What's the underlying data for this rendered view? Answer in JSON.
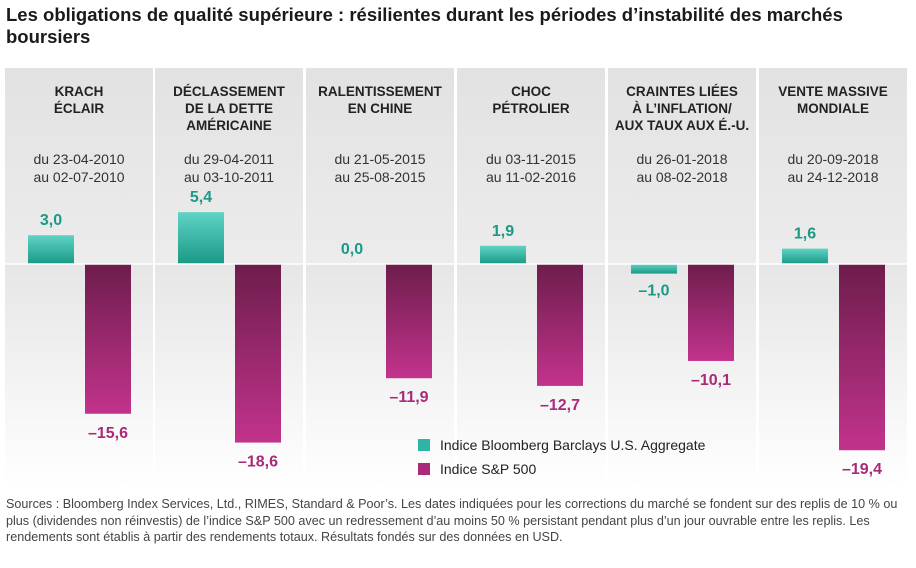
{
  "title": "Les obligations de qualité supérieure : résilientes durant les périodes d’instabilité des marchés boursiers",
  "colors": {
    "bonds": "#2fb5a5",
    "equities": "#a82a78",
    "panel_bg": "#e5e5e5"
  },
  "legend": {
    "bonds": "Indice Bloomberg Barclays U.S. Aggregate",
    "equities": "Indice S&P 500"
  },
  "footnote": "Sources : Bloomberg Index Services, Ltd., RIMES, Standard & Poor’s. Les dates indiquées pour les corrections du marché se fondent sur des replis de 10 % ou plus (dividendes non réinvestis) de l’indice S&P 500 avec un redressement d’au moins 50 % persistant pendant plus d’un jour ouvrable entre les replis. Les rendements sont établis à partir des rendements totaux. Résultats fondés sur des données en USD.",
  "chart_data": {
    "type": "bar",
    "categories": [
      "KRACH ÉCLAIR",
      "DÉCLASSEMENT DE LA DETTE AMÉRICAINE",
      "RALENTISSEMENT EN CHINE",
      "CHOC PÉTROLIER",
      "CRAINTES LIÉES À L’INFLATION/ AUX TAUX AUX É.-U.",
      "VENTE MASSIVE MONDIALE"
    ],
    "panels": [
      {
        "name_lines": [
          "KRACH",
          "ÉCLAIR"
        ],
        "dates": [
          "du 23-04-2010",
          "au 02-07-2010"
        ]
      },
      {
        "name_lines": [
          "DÉCLASSEMENT",
          "DE LA DETTE",
          "AMÉRICAINE"
        ],
        "dates": [
          "du 29-04-2011",
          "au 03-10-2011"
        ]
      },
      {
        "name_lines": [
          "RALENTISSEMENT",
          "EN CHINE"
        ],
        "dates": [
          "du 21-05-2015",
          "au 25-08-2015"
        ]
      },
      {
        "name_lines": [
          "CHOC",
          "PÉTROLIER"
        ],
        "dates": [
          "du 03-11-2015",
          "au 11-02-2016"
        ]
      },
      {
        "name_lines": [
          "CRAINTES LIÉES",
          "À L’INFLATION/",
          "AUX TAUX AUX É.-U."
        ],
        "dates": [
          "du 26-01-2018",
          "au 08-02-2018"
        ]
      },
      {
        "name_lines": [
          "VENTE MASSIVE",
          "MONDIALE"
        ],
        "dates": [
          "du 20-09-2018",
          "au 24-12-2018"
        ]
      }
    ],
    "series": [
      {
        "name": "Indice Bloomberg Barclays U.S. Aggregate",
        "values": [
          3.0,
          5.4,
          0.0,
          1.9,
          -1.0,
          1.6
        ],
        "labels": [
          "3,0",
          "5,4",
          "0,0",
          "1,9",
          "–1,0",
          "1,6"
        ]
      },
      {
        "name": "Indice S&P 500",
        "values": [
          -15.6,
          -18.6,
          -11.9,
          -12.7,
          -10.1,
          -19.4
        ],
        "labels": [
          "–15,6",
          "–18,6",
          "–11,9",
          "–12,7",
          "–10,1",
          "–19,4"
        ]
      }
    ],
    "ylim": [
      -20,
      8
    ],
    "legend_position": "bottom-right"
  }
}
